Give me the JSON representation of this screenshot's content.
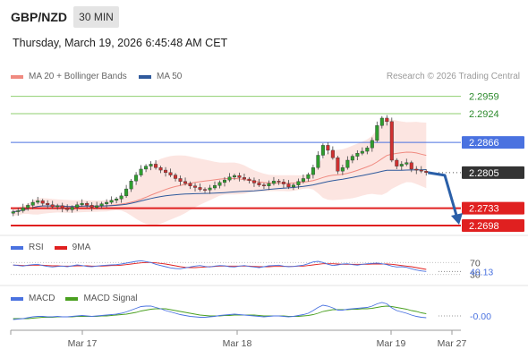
{
  "header": {
    "symbol": "GBP/NZD",
    "timeframe": "30 MIN",
    "datetime": "Thursday, March 19, 2026 6:45:48 AM CET"
  },
  "legend": {
    "ma20_label": "MA 20 + Bollinger Bands",
    "ma50_label": "MA 50",
    "credit": "Research © 2026 Trading Central"
  },
  "colors": {
    "resistance_green": "#8fcf6f",
    "pivot_blue": "#4a72e0",
    "support_red": "#e02020",
    "current_dark": "#333333",
    "candle_up": "#2e9e2e",
    "candle_down": "#d03030",
    "bollinger_fill": "#fbe1dc",
    "ma20": "#f08a80",
    "ma50": "#2f5a9c",
    "arrow": "#2a5fa8",
    "rsi": "#4a72e0",
    "rsi_ma": "#e02020",
    "macd": "#4a72e0",
    "macd_signal": "#4aa020"
  },
  "chart_data": [
    {
      "type": "candlestick",
      "title": "GBP/NZD",
      "timeframe": "30 MIN",
      "x_ticks": [
        "Mar 17",
        "Mar 18",
        "Mar 19",
        "Mar 27"
      ],
      "ylim": [
        2.268,
        2.298
      ],
      "closes": [
        2.2726,
        2.2728,
        2.2734,
        2.2739,
        2.2745,
        2.2748,
        2.2743,
        2.274,
        2.2736,
        2.2738,
        2.2733,
        2.273,
        2.2735,
        2.274,
        2.2743,
        2.2739,
        2.2735,
        2.2738,
        2.2742,
        2.2745,
        2.2749,
        2.2752,
        2.2758,
        2.2772,
        2.2788,
        2.28,
        2.2812,
        2.2818,
        2.2822,
        2.2815,
        2.281,
        2.2805,
        2.28,
        2.2793,
        2.2787,
        2.2783,
        2.2778,
        2.2775,
        2.2771,
        2.277,
        2.2774,
        2.2779,
        2.2785,
        2.279,
        2.2796,
        2.2799,
        2.2795,
        2.2792,
        2.2789,
        2.2784,
        2.278,
        2.2778,
        2.2783,
        2.2788,
        2.2786,
        2.2782,
        2.2776,
        2.278,
        2.2787,
        2.2793,
        2.2801,
        2.2815,
        2.284,
        2.286,
        2.285,
        2.2835,
        2.2808,
        2.2815,
        2.283,
        2.2838,
        2.2844,
        2.2848,
        2.2855,
        2.287,
        2.29,
        2.2915,
        2.2908,
        2.283,
        2.2818,
        2.2822,
        2.2825,
        2.2812,
        2.281,
        2.2808,
        2.2805
      ],
      "levels": [
        {
          "value": 2.2959,
          "label": "2.2959",
          "kind": "resistance"
        },
        {
          "value": 2.2924,
          "label": "2.2924",
          "kind": "resistance"
        },
        {
          "value": 2.2866,
          "label": "2.2866",
          "kind": "pivot"
        },
        {
          "value": 2.2805,
          "label": "2.2805",
          "kind": "current"
        },
        {
          "value": 2.2733,
          "label": "2.2733",
          "kind": "support"
        },
        {
          "value": 2.2698,
          "label": "2.2698",
          "kind": "support"
        }
      ],
      "forecast_arrow": {
        "from": 2.2805,
        "to": 2.2698
      }
    },
    {
      "type": "line",
      "name": "RSI",
      "legend": [
        "RSI",
        "9MA"
      ],
      "levels": [
        {
          "value": 70,
          "label": "70"
        },
        {
          "value": 30,
          "label": "30"
        }
      ],
      "current": 40.13,
      "current_label": "40.13",
      "ylim": [
        20,
        80
      ],
      "rsi": [
        62,
        60,
        58,
        61,
        63,
        64,
        60,
        57,
        55,
        57,
        58,
        56,
        59,
        62,
        60,
        57,
        56,
        58,
        60,
        61,
        62,
        63,
        65,
        68,
        71,
        74,
        76,
        73,
        70,
        64,
        60,
        56,
        52,
        50,
        49,
        52,
        55,
        58,
        60,
        57,
        55,
        58,
        60,
        59,
        56,
        55,
        58,
        60,
        57,
        55,
        53,
        56,
        59,
        60,
        61,
        58,
        56,
        57,
        59,
        61,
        66,
        72,
        74,
        70,
        64,
        60,
        62,
        65,
        66,
        63,
        61,
        64,
        66,
        67,
        68,
        66,
        63,
        58,
        55,
        56,
        54,
        49,
        45,
        42,
        40
      ],
      "ma": [
        61,
        61,
        60,
        60,
        61,
        61,
        61,
        60,
        59,
        59,
        58,
        58,
        58,
        59,
        59,
        59,
        58,
        58,
        58,
        59,
        60,
        60,
        61,
        63,
        65,
        67,
        69,
        70,
        70,
        69,
        67,
        65,
        62,
        59,
        56,
        54,
        53,
        53,
        54,
        55,
        56,
        57,
        58,
        58,
        58,
        58,
        58,
        58,
        58,
        57,
        56,
        56,
        56,
        57,
        57,
        57,
        57,
        57,
        58,
        58,
        60,
        62,
        64,
        66,
        66,
        66,
        65,
        64,
        64,
        64,
        64,
        64,
        64,
        65,
        65,
        65,
        65,
        64,
        62,
        60,
        58,
        56,
        53,
        50,
        47
      ]
    },
    {
      "type": "line",
      "name": "MACD",
      "legend": [
        "MACD",
        "MACD Signal"
      ],
      "current_label": "-0.00",
      "ylim": [
        -0.003,
        0.003
      ],
      "macd": [
        -0.0008,
        -0.0007,
        -0.0006,
        -0.0004,
        -0.0002,
        -0.0001,
        -0.0001,
        -0.0002,
        -0.0002,
        -0.0001,
        -0.0002,
        -0.0002,
        -0.0001,
        0.0,
        0.0001,
        0.0,
        -0.0001,
        0.0,
        0.0001,
        0.0002,
        0.0003,
        0.0004,
        0.0006,
        0.0009,
        0.0013,
        0.0017,
        0.0021,
        0.0022,
        0.0022,
        0.0019,
        0.0016,
        0.0012,
        0.0009,
        0.0006,
        0.0003,
        0.0001,
        -0.0001,
        -0.0002,
        -0.0003,
        -0.0003,
        -0.0002,
        -0.0001,
        0.0001,
        0.0002,
        0.0003,
        0.0004,
        0.0003,
        0.0002,
        0.0001,
        0.0,
        -0.0001,
        -0.0002,
        -0.0001,
        0.0,
        0.0,
        -0.0001,
        -0.0002,
        -0.0001,
        0.0001,
        0.0003,
        0.0006,
        0.0012,
        0.0019,
        0.0024,
        0.0022,
        0.0018,
        0.0013,
        0.0013,
        0.0015,
        0.0016,
        0.0017,
        0.0018,
        0.0019,
        0.0022,
        0.0027,
        0.003,
        0.0027,
        0.0018,
        0.0012,
        0.0009,
        0.0006,
        0.0002,
        -0.0001,
        -0.0003,
        -0.0004
      ],
      "signal": [
        -0.0006,
        -0.0006,
        -0.0006,
        -0.0006,
        -0.0005,
        -0.0004,
        -0.0003,
        -0.0003,
        -0.0003,
        -0.0002,
        -0.0002,
        -0.0002,
        -0.0002,
        -0.0001,
        -0.0001,
        -0.0001,
        -0.0001,
        -0.0001,
        0.0,
        0.0,
        0.0001,
        0.0002,
        0.0003,
        0.0004,
        0.0006,
        0.0008,
        0.0011,
        0.0013,
        0.0015,
        0.0016,
        0.0016,
        0.0016,
        0.0014,
        0.0012,
        0.001,
        0.0008,
        0.0006,
        0.0004,
        0.0002,
        0.0001,
        0.0,
        0.0,
        0.0,
        0.0001,
        0.0001,
        0.0002,
        0.0002,
        0.0002,
        0.0002,
        0.0002,
        0.0001,
        0.0,
        0.0,
        0.0,
        0.0,
        0.0,
        -0.0001,
        -0.0001,
        -0.0001,
        0.0,
        0.0001,
        0.0003,
        0.0006,
        0.001,
        0.0012,
        0.0014,
        0.0014,
        0.0014,
        0.0014,
        0.0015,
        0.0015,
        0.0016,
        0.0016,
        0.0017,
        0.0019,
        0.0021,
        0.0022,
        0.0021,
        0.0019,
        0.0017,
        0.0015,
        0.0012,
        0.001,
        0.0007,
        0.0005
      ]
    }
  ],
  "sub_legends": {
    "rsi_label": "RSI",
    "rsi_ma_label": "9MA",
    "macd_label": "MACD",
    "macd_signal_label": "MACD Signal"
  }
}
